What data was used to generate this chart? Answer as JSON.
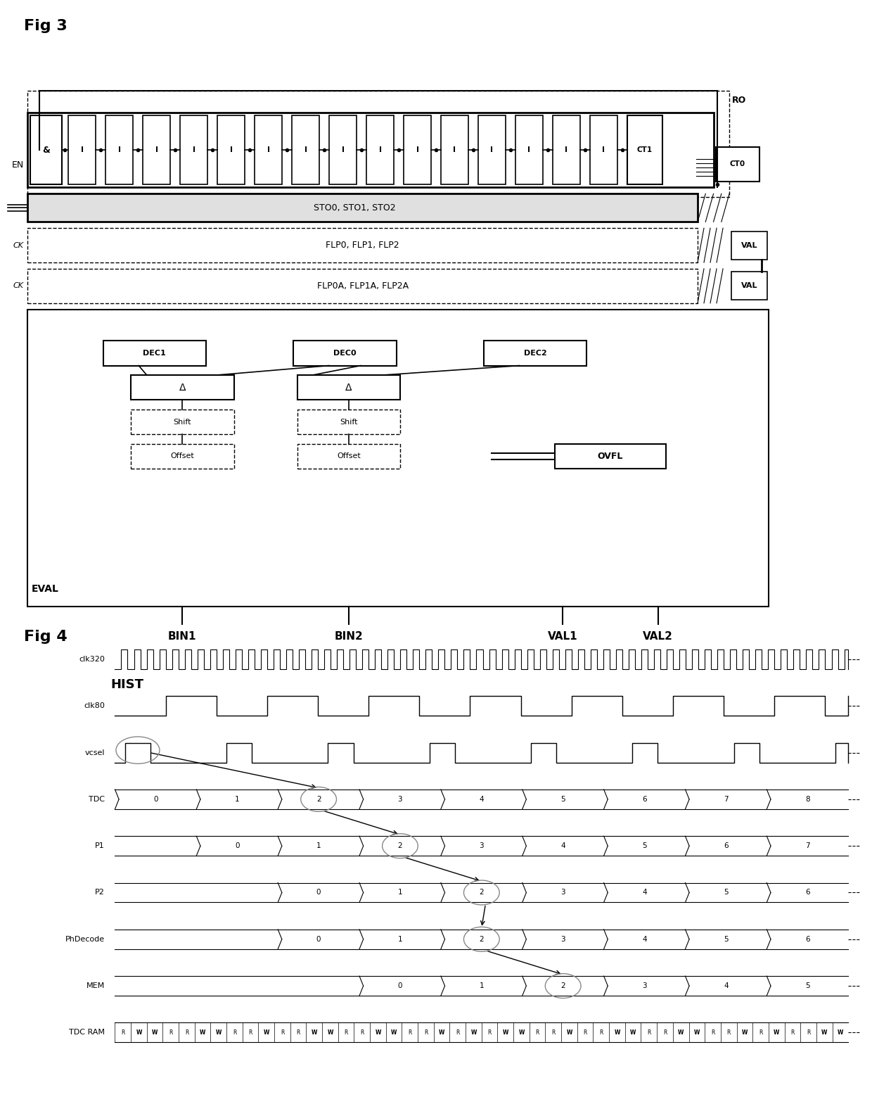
{
  "fig3_title": "Fig 3",
  "fig4_title": "Fig 4",
  "background_color": "#ffffff",
  "fig3": {
    "ro_label": "RO",
    "en_label": "EN",
    "ck_label": "CK",
    "sto_label": "STO0, STO1, STO2",
    "flp_label": "FLP0, FLP1, FLP2",
    "flpa_label": "FLP0A, FLP1A, FLP2A",
    "val_label": "VAL",
    "ct1_label": "CT1",
    "ct0_label": "CT0",
    "eval_label": "EVAL",
    "dec1_label": "DEC1",
    "dec0_label": "DEC0",
    "dec2_label": "DEC2",
    "delta_label": "Δ",
    "shift_label": "Shift",
    "offset_label": "Offset",
    "ovfl_label": "OVFL",
    "bin1_label": "BIN1",
    "bin2_label": "BIN2",
    "val1_label": "VAL1",
    "val2_label": "VAL2",
    "hist_label": "HIST",
    "num_delay_cells": 17
  },
  "fig4": {
    "signals": [
      "clk320",
      "clk80",
      "vcsel",
      "TDC",
      "P1",
      "P2",
      "PhDecode",
      "MEM",
      "TDC RAM"
    ],
    "tdc_values": [
      "0",
      "1",
      "2",
      "3",
      "4",
      "5",
      "6",
      "7",
      "8"
    ],
    "p1_values": [
      "0",
      "1",
      "2",
      "3",
      "4",
      "5",
      "6",
      "7"
    ],
    "p2_values": [
      "0",
      "1",
      "2",
      "3",
      "4",
      "5",
      "6"
    ],
    "phdecode_values": [
      "0",
      "1",
      "2",
      "3",
      "4",
      "5",
      "6"
    ],
    "mem_values": [
      "0",
      "1",
      "2",
      "3",
      "4",
      "5"
    ],
    "tdcram_values": [
      "R",
      "W",
      "W",
      "R",
      "R",
      "W",
      "W",
      "R",
      "R",
      "W",
      "R",
      "R",
      "W",
      "W",
      "R",
      "R",
      "W",
      "W",
      "R",
      "R",
      "W",
      "R",
      "W",
      "R",
      "W",
      "W",
      "R",
      "R",
      "W",
      "R",
      "R",
      "W",
      "W",
      "R",
      "R",
      "W",
      "W",
      "R",
      "R",
      "W",
      "R",
      "W",
      "R",
      "R",
      "W",
      "W"
    ]
  }
}
